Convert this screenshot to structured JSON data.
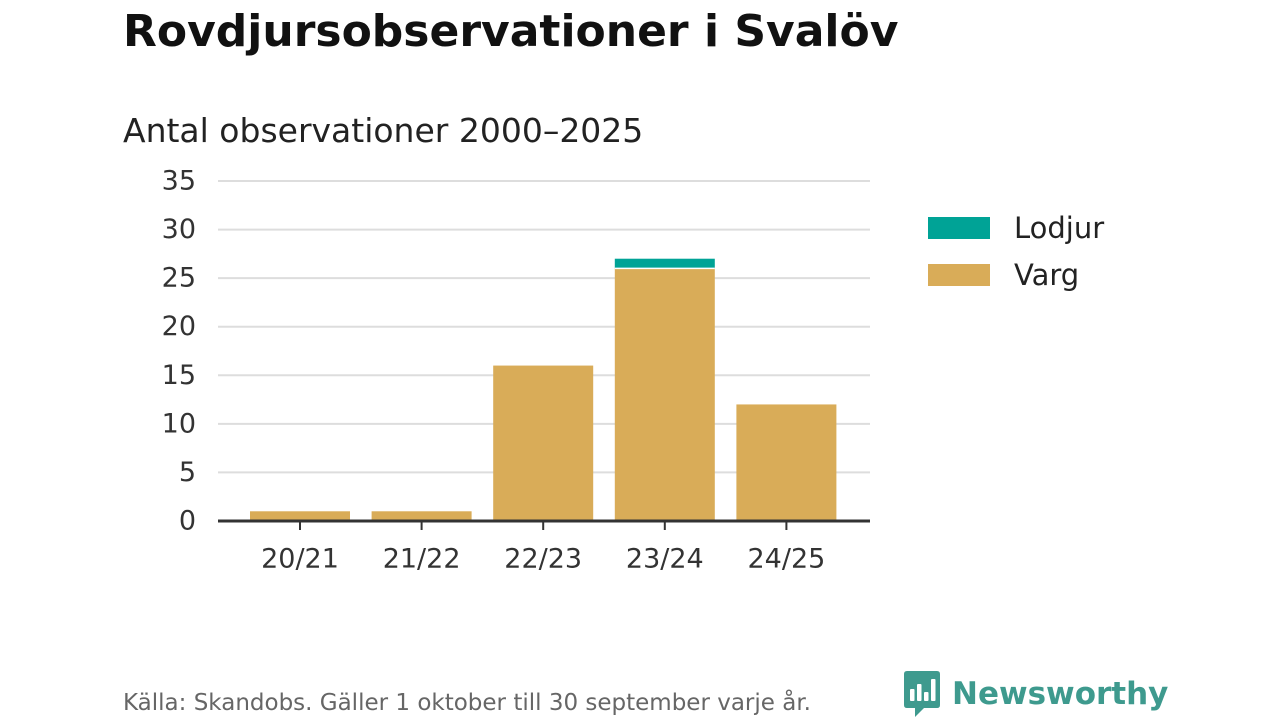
{
  "title": "Rovdjursobservationer i Svalöv",
  "subtitle": "Antal observationer 2000–2025",
  "footnote": "Källa: Skandobs. Gäller 1 oktober till 30 september varje år.",
  "brand": {
    "name": "Newsworthy",
    "icon": "newsworthy-logo-icon",
    "color": "#3e9a8e"
  },
  "chart_data": {
    "type": "bar",
    "stacked": true,
    "categories": [
      "20/21",
      "21/22",
      "22/23",
      "23/24",
      "24/25"
    ],
    "series": [
      {
        "name": "Varg",
        "color": "#d9ac58",
        "values": [
          1,
          1,
          16,
          26,
          12
        ]
      },
      {
        "name": "Lodjur",
        "color": "#00a396",
        "values": [
          0,
          0,
          0,
          1,
          0
        ]
      }
    ],
    "ylim": [
      0,
      35
    ],
    "yticks": [
      0,
      5,
      10,
      15,
      20,
      25,
      30,
      35
    ],
    "xlabel": "",
    "ylabel": "",
    "grid": true,
    "legend": {
      "placement": "right",
      "order": [
        "Lodjur",
        "Varg"
      ]
    }
  }
}
